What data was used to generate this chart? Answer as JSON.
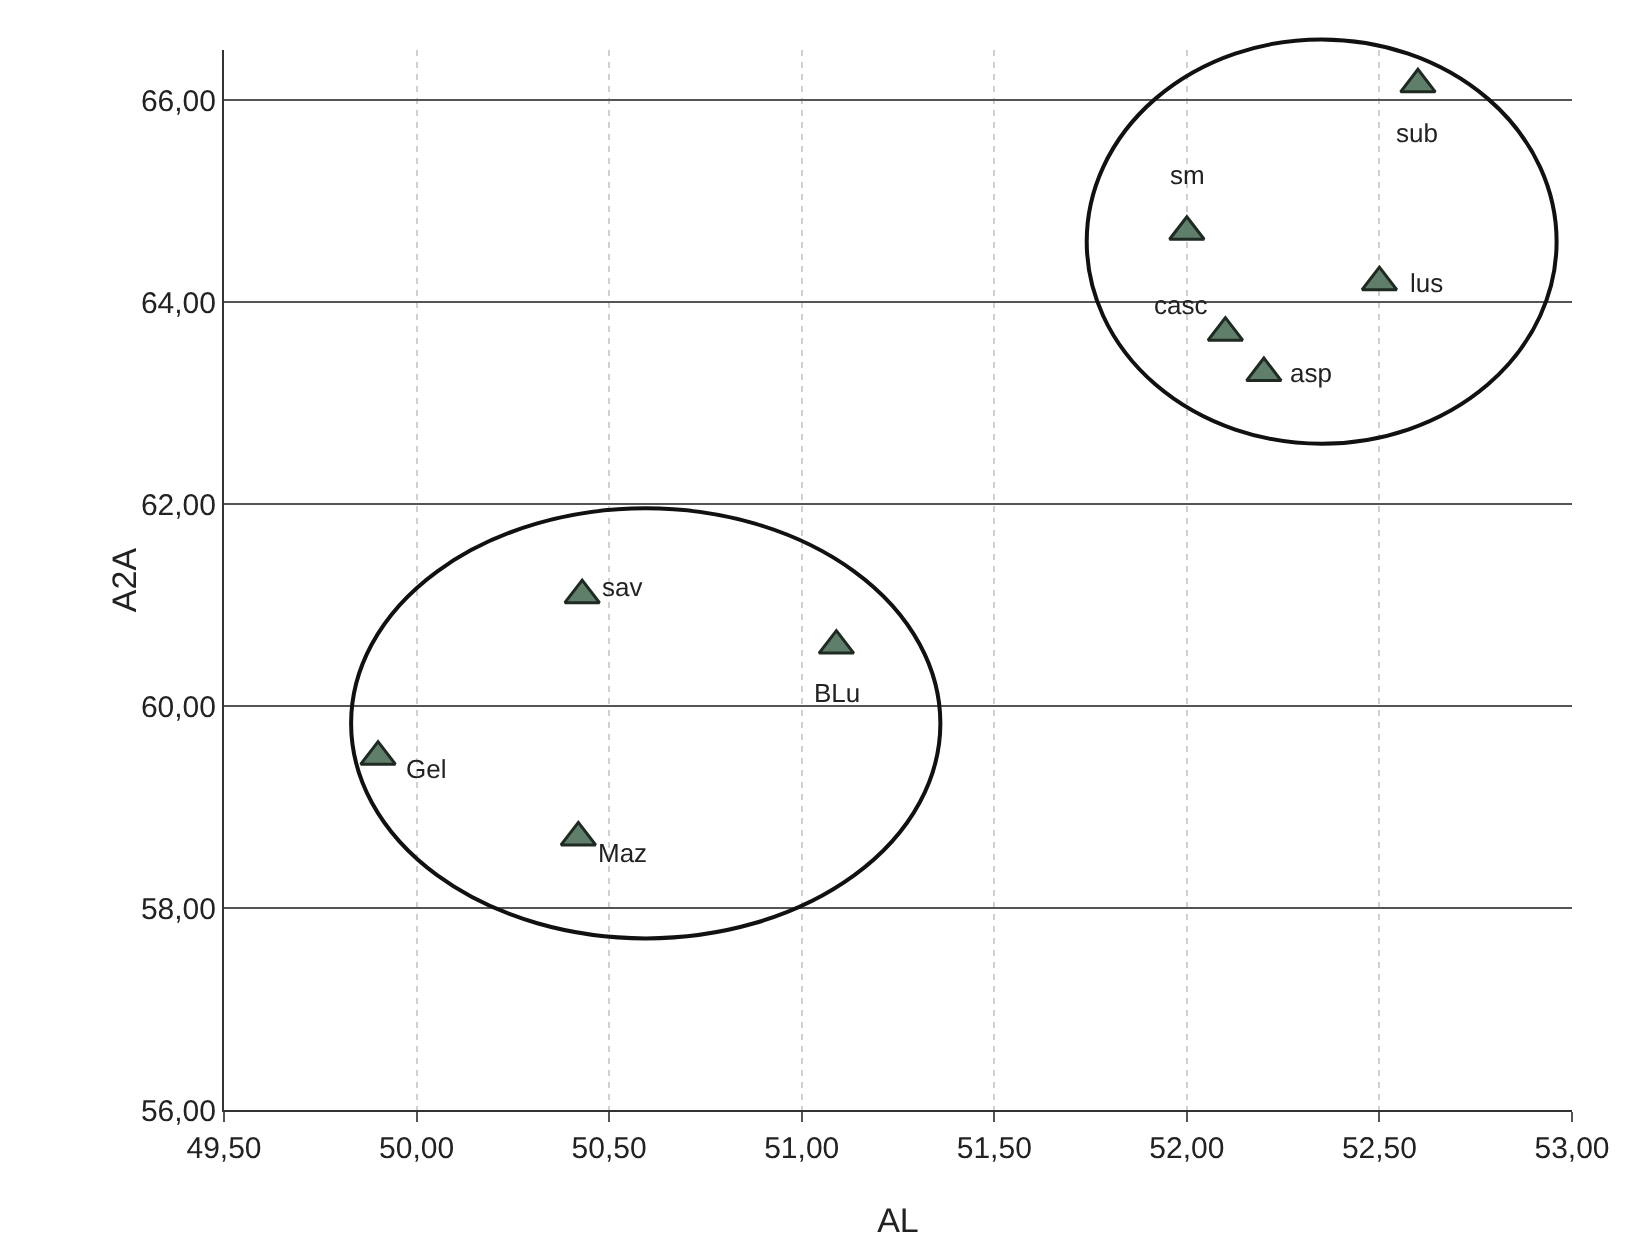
{
  "chart_data": {
    "type": "scatter",
    "xlabel": "AL",
    "ylabel": "A2A",
    "x": [
      52.6,
      52.0,
      52.5,
      52.1,
      52.2,
      50.43,
      51.09,
      49.9,
      50.42
    ],
    "values": [
      66.16,
      64.7,
      64.2,
      63.7,
      63.3,
      61.1,
      60.6,
      59.5,
      58.7
    ],
    "color": "#5f7f6a",
    "marker": "triangle",
    "grid": true,
    "xlim": [
      49.5,
      53.0
    ],
    "xticks": [
      {
        "value": 49.5,
        "label": "49,50"
      },
      {
        "value": 50,
        "label": "50,00"
      },
      {
        "value": 50.5,
        "label": "50,50"
      },
      {
        "value": 51,
        "label": "51,00"
      },
      {
        "value": 51.5,
        "label": "51,50"
      },
      {
        "value": 52,
        "label": "52,00"
      },
      {
        "value": 52.5,
        "label": "52,50"
      },
      {
        "value": 53,
        "label": "53,00"
      }
    ],
    "ylim": [
      56,
      66.5
    ],
    "yticks": [
      {
        "value": 56,
        "label": "56,00"
      },
      {
        "value": 58,
        "label": "58,00"
      },
      {
        "value": 60,
        "label": "60,00"
      },
      {
        "value": 62,
        "label": "62,00"
      },
      {
        "value": 64,
        "label": "64,00"
      },
      {
        "value": 66,
        "label": "66,00"
      }
    ],
    "annotations": [
      {
        "text": "sub",
        "x": 52.6,
        "y": 66.16
      },
      {
        "text": "sm",
        "x": 52.0,
        "y": 64.7
      },
      {
        "text": "lus",
        "x": 52.5,
        "y": 64.2
      },
      {
        "text": "casc",
        "x": 52.1,
        "y": 63.7
      },
      {
        "text": "asp",
        "x": 52.2,
        "y": 63.3
      },
      {
        "text": "sav",
        "x": 50.43,
        "y": 61.1
      },
      {
        "text": "BLu",
        "x": 51.09,
        "y": 60.6
      },
      {
        "text": "Gel",
        "x": 49.9,
        "y": 59.5
      },
      {
        "text": "Maz",
        "x": 50.42,
        "y": 58.7
      }
    ]
  }
}
